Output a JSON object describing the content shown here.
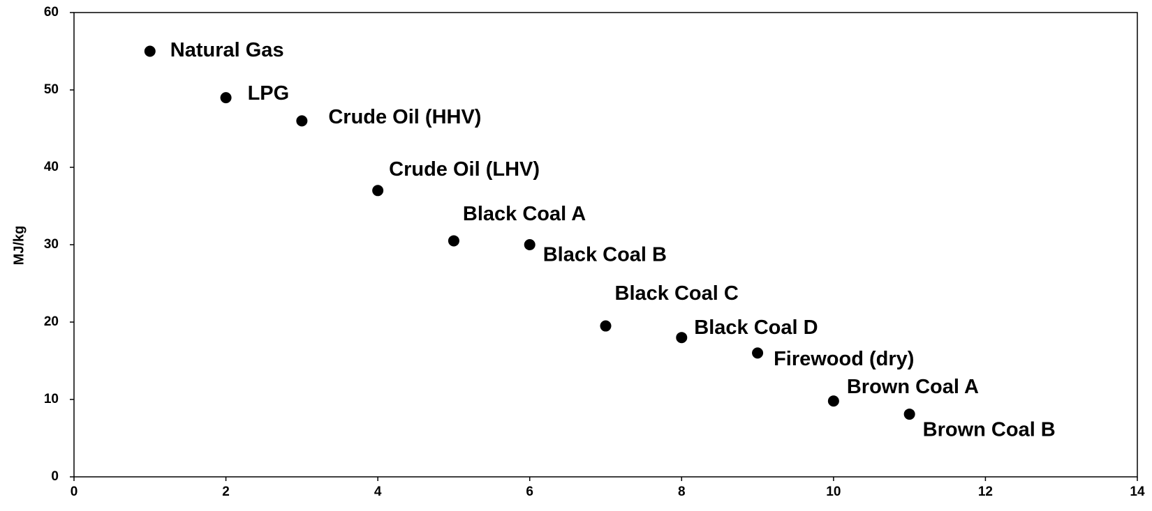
{
  "chart_data": {
    "type": "scatter",
    "y_label": "MJ/kg",
    "x": [
      1,
      2,
      3,
      4,
      5,
      6,
      7,
      8,
      9,
      10,
      11
    ],
    "values": [
      55,
      49,
      46,
      37,
      30.5,
      30,
      19.5,
      18,
      16,
      9.8,
      8.1
    ],
    "labels": [
      "Natural Gas",
      "LPG",
      "Crude Oil (HHV)",
      "Crude Oil (LHV)",
      "Black Coal A",
      "Black Coal B",
      "Black Coal  C",
      "Black Coal D",
      "Firewood (dry)",
      "Brown Coal A",
      "Brown Coal B"
    ],
    "color": "#000000",
    "xlim": [
      0,
      14
    ],
    "xticks": [
      0,
      2,
      4,
      6,
      8,
      10,
      12,
      14
    ],
    "ylim": [
      0,
      60
    ],
    "yticks": [
      0,
      10,
      20,
      30,
      40,
      50,
      60
    ],
    "grid": false
  }
}
